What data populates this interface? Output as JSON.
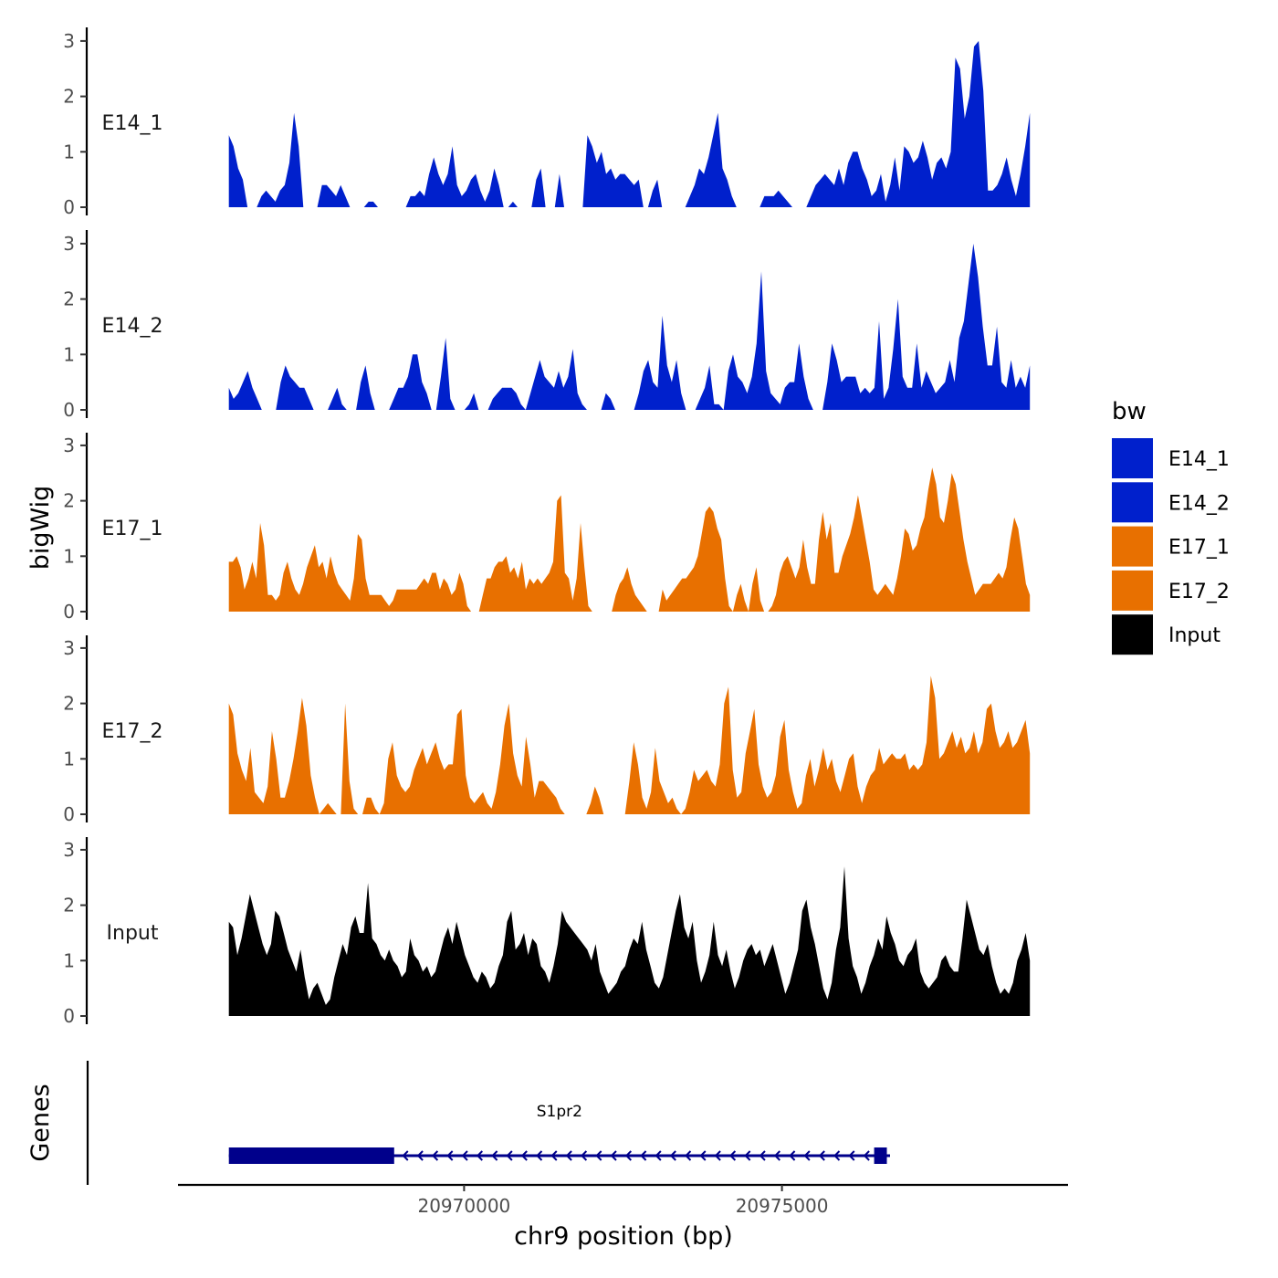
{
  "chart_data": {
    "type": "area",
    "x_unit": "bp",
    "xlim": [
      20965500,
      20979500
    ],
    "data_xrange": [
      20966300,
      20978900
    ],
    "ylim": [
      0,
      3
    ],
    "y_ticks": [
      "0",
      "1",
      "2",
      "3"
    ],
    "x_ticks": [
      {
        "value": 20970000,
        "label": "20970000"
      },
      {
        "value": 20975000,
        "label": "20975000"
      }
    ],
    "ylabel": "bigWig",
    "genes_label": "Genes",
    "xlabel": "chr9 position (bp)",
    "legend": {
      "title": "bw",
      "placement": "right",
      "items": [
        {
          "label": "E14_1",
          "color": "#0020CC"
        },
        {
          "label": "E14_2",
          "color": "#0020CC"
        },
        {
          "label": "E17_1",
          "color": "#E87000"
        },
        {
          "label": "E17_2",
          "color": "#E87000"
        },
        {
          "label": "Input",
          "color": "#000000"
        }
      ]
    },
    "series": [
      {
        "name": "E14_1",
        "color": "#0020CC",
        "values": [
          1.3,
          1.1,
          0.7,
          0.5,
          0,
          0,
          0,
          0.2,
          0.3,
          0.2,
          0.1,
          0.3,
          0.4,
          0.8,
          1.7,
          1.1,
          0,
          0,
          0,
          0,
          0.4,
          0.4,
          0.3,
          0.2,
          0.4,
          0.2,
          0,
          0,
          0,
          0,
          0.1,
          0.1,
          0,
          0,
          0,
          0,
          0,
          0,
          0,
          0.2,
          0.2,
          0.3,
          0.2,
          0.6,
          0.9,
          0.6,
          0.4,
          0.6,
          1.1,
          0.4,
          0.2,
          0.3,
          0.5,
          0.6,
          0.3,
          0.1,
          0.3,
          0.7,
          0.4,
          0,
          0,
          0.1,
          0,
          0,
          0,
          0,
          0.5,
          0.7,
          0,
          0,
          0,
          0.6,
          0,
          0,
          0,
          0,
          0,
          1.3,
          1.1,
          0.8,
          1.0,
          0.6,
          0.7,
          0.5,
          0.6,
          0.6,
          0.5,
          0.4,
          0.5,
          0,
          0,
          0.3,
          0.5,
          0,
          0,
          0,
          0,
          0,
          0,
          0.2,
          0.4,
          0.7,
          0.6,
          0.9,
          1.3,
          1.7,
          0.7,
          0.5,
          0.2,
          0,
          0,
          0,
          0,
          0,
          0,
          0.2,
          0.2,
          0.2,
          0.3,
          0.2,
          0.1,
          0,
          0,
          0,
          0,
          0.2,
          0.4,
          0.5,
          0.6,
          0.5,
          0.4,
          0.7,
          0.4,
          0.8,
          1.0,
          1.0,
          0.7,
          0.5,
          0.2,
          0.3,
          0.6,
          0.1,
          0.4,
          0.9,
          0.3,
          1.1,
          1.0,
          0.8,
          0.9,
          1.2,
          0.9,
          0.5,
          0.8,
          0.9,
          0.7,
          1.0,
          2.7,
          2.5,
          1.6,
          2.0,
          2.9,
          3.0,
          2.1,
          0.3,
          0.3,
          0.4,
          0.6,
          0.9,
          0.5,
          0.2,
          0.6,
          1.1,
          1.7
        ]
      },
      {
        "name": "E14_2",
        "color": "#0020CC",
        "values": [
          0.4,
          0.2,
          0.3,
          0.5,
          0.7,
          0.4,
          0.2,
          0,
          0,
          0,
          0,
          0.5,
          0.8,
          0.6,
          0.5,
          0.4,
          0.4,
          0.2,
          0,
          0,
          0,
          0,
          0.2,
          0.4,
          0.1,
          0,
          0,
          0,
          0.5,
          0.8,
          0.3,
          0,
          0,
          0,
          0,
          0.2,
          0.4,
          0.4,
          0.6,
          1.0,
          1.0,
          0.5,
          0.3,
          0,
          0,
          0.6,
          1.3,
          0.2,
          0,
          0,
          0,
          0.1,
          0.3,
          0,
          0,
          0,
          0.2,
          0.3,
          0.4,
          0.4,
          0.4,
          0.3,
          0.1,
          0,
          0.3,
          0.6,
          0.9,
          0.6,
          0.5,
          0.4,
          0.7,
          0.4,
          0.6,
          1.1,
          0.3,
          0.1,
          0,
          0,
          0,
          0,
          0.3,
          0.2,
          0,
          0,
          0,
          0,
          0,
          0.3,
          0.7,
          0.9,
          0.5,
          0.4,
          1.7,
          0.8,
          0.5,
          0.9,
          0.3,
          0,
          0,
          0,
          0.2,
          0.4,
          0.8,
          0.1,
          0.1,
          0,
          0.7,
          1.0,
          0.6,
          0.5,
          0.3,
          0.6,
          1.2,
          2.5,
          0.7,
          0.3,
          0.2,
          0.1,
          0.4,
          0.5,
          0.5,
          1.2,
          0.6,
          0.2,
          0,
          0,
          0,
          0.5,
          1.2,
          0.9,
          0.5,
          0.6,
          0.6,
          0.6,
          0.3,
          0.4,
          0.3,
          0.4,
          1.6,
          0.2,
          0.4,
          1.1,
          2.0,
          0.6,
          0.4,
          0.4,
          1.2,
          0.4,
          0.7,
          0.5,
          0.3,
          0.4,
          0.5,
          0.9,
          0.5,
          1.3,
          1.6,
          2.3,
          3.0,
          2.4,
          1.5,
          0.8,
          0.8,
          1.5,
          0.5,
          0.4,
          0.9,
          0.4,
          0.6,
          0.4,
          0.8
        ]
      },
      {
        "name": "E17_1",
        "color": "#E87000",
        "values": [
          0.9,
          0.9,
          1.0,
          0.8,
          0.4,
          0.6,
          0.9,
          0.6,
          1.6,
          1.2,
          0.3,
          0.3,
          0.2,
          0.3,
          0.7,
          0.9,
          0.6,
          0.4,
          0.3,
          0.5,
          0.8,
          1.0,
          1.2,
          0.8,
          0.9,
          0.6,
          1.0,
          0.7,
          0.5,
          0.4,
          0.3,
          0.2,
          0.6,
          1.4,
          1.3,
          0.6,
          0.3,
          0.3,
          0.3,
          0.3,
          0.2,
          0.1,
          0.2,
          0.4,
          0.4,
          0.4,
          0.4,
          0.4,
          0.4,
          0.5,
          0.6,
          0.5,
          0.7,
          0.7,
          0.4,
          0.6,
          0.5,
          0.3,
          0.4,
          0.7,
          0.5,
          0.1,
          0,
          0,
          0,
          0.3,
          0.6,
          0.6,
          0.8,
          0.9,
          0.9,
          1.0,
          0.7,
          0.8,
          0.6,
          0.9,
          0.4,
          0.6,
          0.5,
          0.6,
          0.5,
          0.6,
          0.7,
          0.9,
          2.0,
          2.1,
          0.7,
          0.6,
          0.2,
          0.6,
          1.6,
          0.8,
          0.1,
          0,
          0,
          0,
          0,
          0,
          0,
          0.3,
          0.5,
          0.6,
          0.8,
          0.5,
          0.3,
          0.2,
          0.1,
          0,
          0,
          0,
          0,
          0.4,
          0.2,
          0.3,
          0.4,
          0.5,
          0.6,
          0.6,
          0.7,
          0.8,
          1.0,
          1.4,
          1.8,
          1.9,
          1.8,
          1.5,
          1.3,
          0.6,
          0.1,
          0,
          0.3,
          0.5,
          0.2,
          0,
          0.5,
          0.8,
          0.2,
          0,
          0,
          0.1,
          0.3,
          0.7,
          0.9,
          1.0,
          0.8,
          0.6,
          0.8,
          1.3,
          0.8,
          0.5,
          0.5,
          1.3,
          1.8,
          1.3,
          1.6,
          0.7,
          0.7,
          1.0,
          1.2,
          1.4,
          1.7,
          2.1,
          1.7,
          1.3,
          0.9,
          0.4,
          0.3,
          0.4,
          0.5,
          0.4,
          0.3,
          0.6,
          1.0,
          1.5,
          1.4,
          1.1,
          1.2,
          1.5,
          1.7,
          2.2,
          2.6,
          2.3,
          1.7,
          1.6,
          2.0,
          2.5,
          2.3,
          1.8,
          1.3,
          0.9,
          0.6,
          0.3,
          0.4,
          0.5,
          0.5,
          0.5,
          0.6,
          0.7,
          0.6,
          0.8,
          1.3,
          1.7,
          1.5,
          1.0,
          0.5,
          0.3
        ]
      },
      {
        "name": "E17_2",
        "color": "#E87000",
        "values": [
          2.0,
          1.8,
          1.1,
          0.8,
          0.6,
          1.2,
          0.4,
          0.3,
          0.2,
          0.5,
          1.5,
          1.0,
          0.3,
          0.3,
          0.6,
          1.0,
          1.5,
          2.1,
          1.6,
          0.7,
          0.3,
          0,
          0.1,
          0.2,
          0.1,
          0,
          0,
          2.0,
          0.6,
          0.1,
          0,
          0,
          0.3,
          0.3,
          0.1,
          0,
          0.2,
          1.0,
          1.3,
          0.7,
          0.5,
          0.4,
          0.5,
          0.8,
          1.0,
          1.2,
          0.9,
          1.1,
          1.3,
          1.0,
          0.8,
          0.9,
          0.9,
          1.8,
          1.9,
          0.7,
          0.3,
          0.2,
          0.3,
          0.4,
          0.2,
          0.1,
          0.4,
          0.9,
          1.6,
          2.0,
          1.1,
          0.7,
          0.5,
          1.4,
          0.9,
          0.3,
          0.6,
          0.6,
          0.5,
          0.4,
          0.3,
          0.1,
          0,
          0,
          0,
          0,
          0,
          0,
          0.2,
          0.5,
          0.3,
          0,
          0,
          0,
          0,
          0,
          0,
          0.6,
          1.3,
          0.9,
          0.3,
          0.1,
          0.4,
          1.2,
          0.6,
          0.4,
          0.2,
          0.3,
          0.1,
          0,
          0.1,
          0.4,
          0.8,
          0.6,
          0.7,
          0.8,
          0.6,
          0.5,
          0.9,
          2.0,
          2.3,
          0.8,
          0.3,
          0.4,
          1.1,
          1.5,
          1.9,
          0.9,
          0.5,
          0.3,
          0.4,
          0.7,
          1.4,
          1.7,
          0.8,
          0.4,
          0.1,
          0.2,
          0.7,
          1.0,
          0.5,
          0.8,
          1.2,
          0.8,
          1.0,
          0.6,
          0.4,
          0.7,
          1.0,
          1.1,
          0.5,
          0.2,
          0.5,
          0.7,
          0.8,
          1.2,
          0.9,
          1.0,
          1.1,
          1.0,
          1.0,
          1.1,
          0.8,
          0.9,
          0.8,
          0.9,
          1.3,
          2.5,
          2.1,
          1.0,
          1.1,
          1.3,
          1.5,
          1.2,
          1.4,
          1.1,
          1.2,
          1.5,
          1.1,
          1.3,
          1.9,
          2.0,
          1.5,
          1.2,
          1.3,
          1.5,
          1.2,
          1.3,
          1.5,
          1.7,
          1.1
        ]
      },
      {
        "name": "Input",
        "color": "#000000",
        "values": [
          1.7,
          1.6,
          1.1,
          1.4,
          1.8,
          2.2,
          1.9,
          1.6,
          1.3,
          1.1,
          1.3,
          1.9,
          1.8,
          1.5,
          1.2,
          1.0,
          0.8,
          1.2,
          0.7,
          0.3,
          0.5,
          0.6,
          0.4,
          0.2,
          0.3,
          0.7,
          1.0,
          1.3,
          1.1,
          1.6,
          1.8,
          1.5,
          1.5,
          2.4,
          1.4,
          1.3,
          1.1,
          1.0,
          1.2,
          1.0,
          0.9,
          0.7,
          0.8,
          1.4,
          1.1,
          1.0,
          0.8,
          0.9,
          0.7,
          0.8,
          1.1,
          1.4,
          1.6,
          1.3,
          1.7,
          1.4,
          1.1,
          0.9,
          0.7,
          0.6,
          0.8,
          0.7,
          0.5,
          0.6,
          0.9,
          1.1,
          1.7,
          1.9,
          1.2,
          1.3,
          1.5,
          1.1,
          1.4,
          1.3,
          0.9,
          0.8,
          0.6,
          0.9,
          1.3,
          1.9,
          1.7,
          1.6,
          1.5,
          1.4,
          1.3,
          1.2,
          1.0,
          1.3,
          0.8,
          0.6,
          0.4,
          0.5,
          0.6,
          0.8,
          0.9,
          1.2,
          1.4,
          1.3,
          1.7,
          1.2,
          0.9,
          0.6,
          0.5,
          0.7,
          1.1,
          1.5,
          1.9,
          2.2,
          1.6,
          1.4,
          1.7,
          1.0,
          0.6,
          0.8,
          1.1,
          1.7,
          1.1,
          0.9,
          1.2,
          0.8,
          0.5,
          0.7,
          1.0,
          1.2,
          1.3,
          1.1,
          1.2,
          0.9,
          1.1,
          1.3,
          1.0,
          0.7,
          0.4,
          0.6,
          0.9,
          1.2,
          1.9,
          2.1,
          1.6,
          1.3,
          0.9,
          0.5,
          0.3,
          0.6,
          1.2,
          1.6,
          2.7,
          1.4,
          0.9,
          0.7,
          0.4,
          0.6,
          0.9,
          1.1,
          1.4,
          1.2,
          1.8,
          1.5,
          1.3,
          1.0,
          0.9,
          1.1,
          1.2,
          1.4,
          0.8,
          0.6,
          0.5,
          0.6,
          0.7,
          1.0,
          1.1,
          0.9,
          0.8,
          0.8,
          1.4,
          2.1,
          1.8,
          1.5,
          1.2,
          1.1,
          1.3,
          0.9,
          0.6,
          0.4,
          0.5,
          0.4,
          0.6,
          1.0,
          1.2,
          1.5,
          1.0
        ]
      }
    ],
    "genes": [
      {
        "name": "S1pr2",
        "strand": "-",
        "start": 20966300,
        "end": 20976700,
        "exons": [
          {
            "start": 20966300,
            "end": 20968900
          },
          {
            "start": 20976450,
            "end": 20976650
          }
        ]
      }
    ]
  }
}
